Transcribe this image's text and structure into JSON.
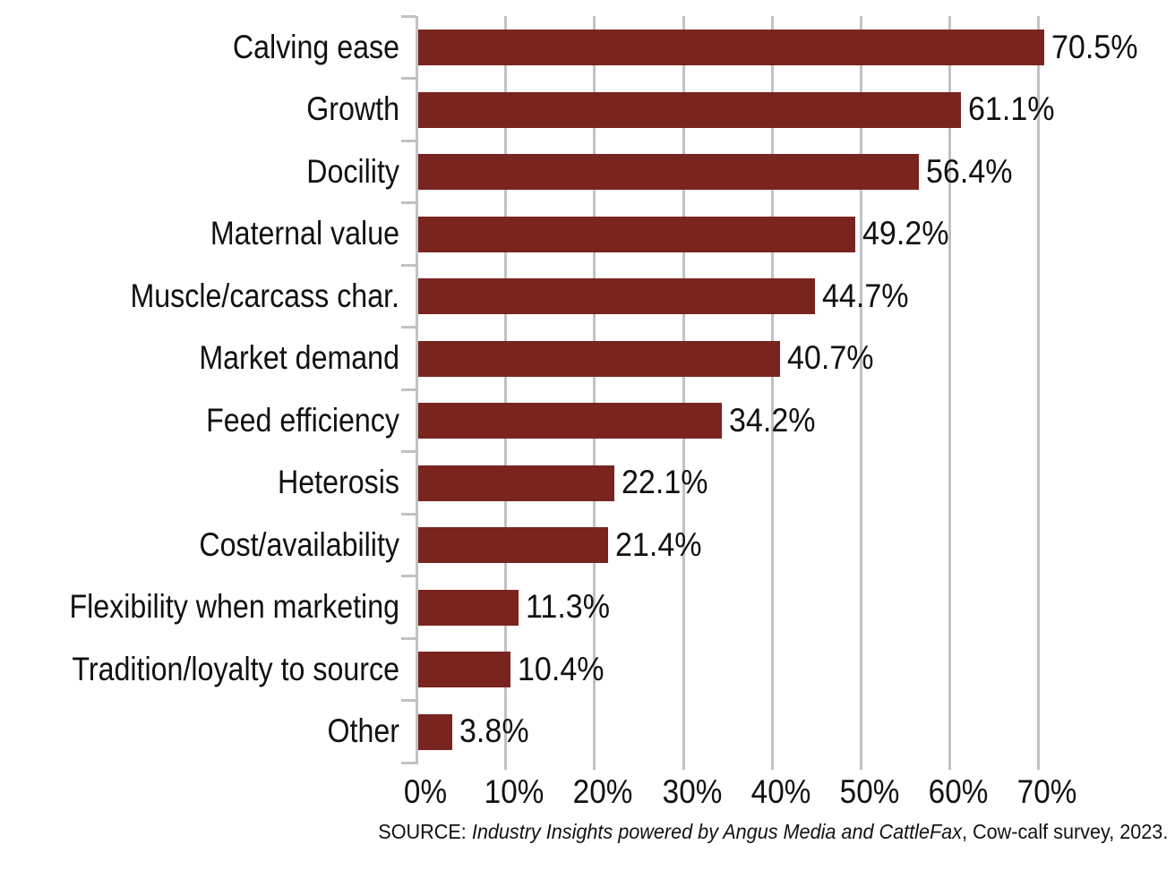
{
  "chart_data": {
    "type": "bar",
    "orientation": "horizontal",
    "title": "",
    "xlabel": "",
    "ylabel": "",
    "categories": [
      "Calving ease",
      "Growth",
      "Docility",
      "Maternal value",
      "Muscle/carcass char.",
      "Market demand",
      "Feed efficiency",
      "Heterosis",
      "Cost/availability",
      "Flexibility when marketing",
      "Tradition/loyalty to source",
      "Other"
    ],
    "values": [
      70.5,
      61.1,
      56.4,
      49.2,
      44.7,
      40.7,
      34.2,
      22.1,
      21.4,
      11.3,
      10.4,
      3.8
    ],
    "value_labels": [
      "70.5%",
      "61.1%",
      "56.4%",
      "49.2%",
      "44.7%",
      "40.7%",
      "34.2%",
      "22.1%",
      "21.4%",
      "11.3%",
      "10.4%",
      "3.8%"
    ],
    "x_ticks": [
      "0%",
      "10%",
      "20%",
      "30%",
      "40%",
      "50%",
      "60%",
      "70%"
    ],
    "xlim": [
      0,
      70
    ],
    "grid": "vertical-gridlines-on",
    "legend": "none",
    "bar_color": "#7a241f",
    "grid_color": "#c1c2c3",
    "text_color": "#111111"
  },
  "source_note": {
    "prefix": "SOURCE: ",
    "italic": "Industry Insights powered by Angus Media and CattleFax",
    "suffix": ", Cow-calf survey, 2023."
  }
}
